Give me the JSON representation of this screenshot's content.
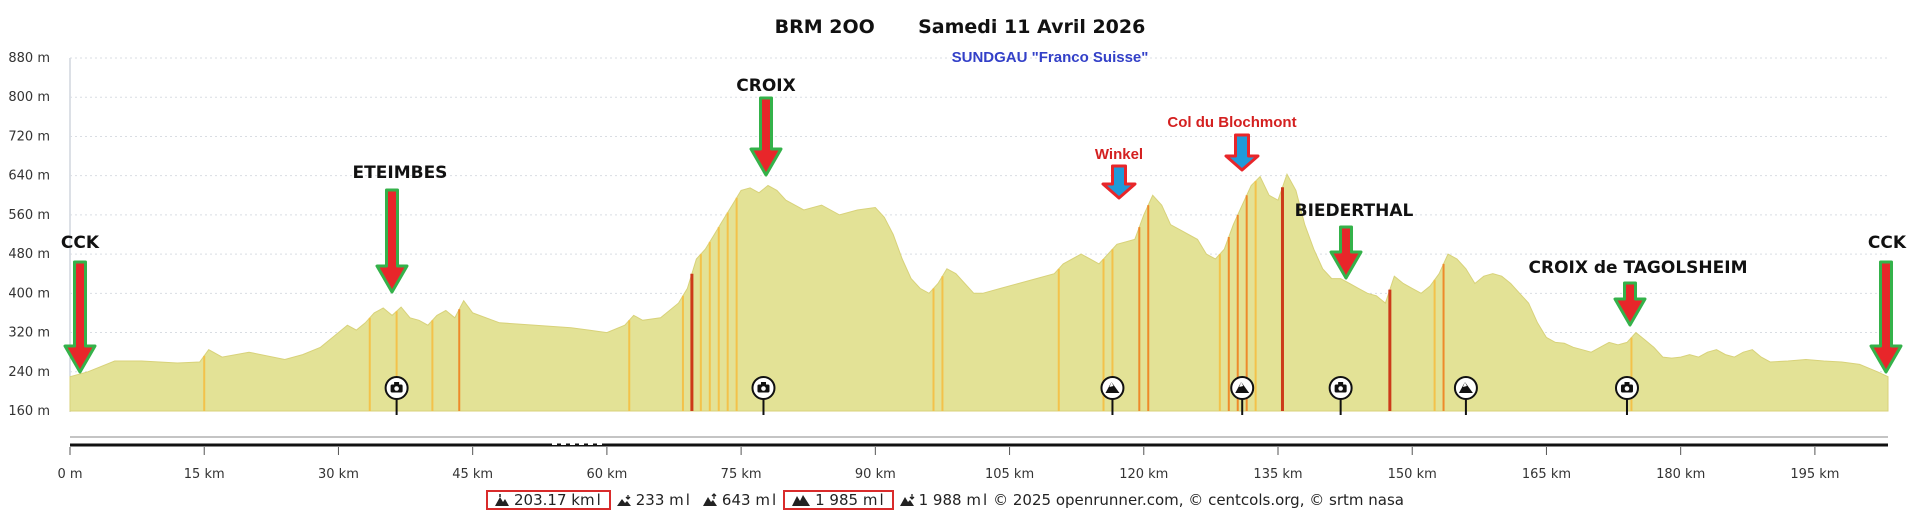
{
  "header": {
    "title": "BRM 2OO",
    "date": "Samedi 11 Avril 2026",
    "subtitle": "SUNDGAU \"Franco Suisse\""
  },
  "footer": {
    "distance": "203.17 km",
    "min_elevation": "233 m",
    "max_elevation": "643 m",
    "climb": "1 985 m",
    "descent": "1 988 m",
    "credits": "© 2025 openrunner.com, © centcols.org, © srtm nasa",
    "separator": "l"
  },
  "colors": {
    "fill": "#e3e296",
    "climb_light": "#f3c24a",
    "climb_mid": "#ee8a2a",
    "climb_steep": "#cc3a1a",
    "arrow_red": "#e8262a",
    "arrow_blue": "#1f9ad9",
    "arrow_border": "#34b24a",
    "label_red": "#d42020",
    "subtitle_blue": "#3340c8"
  },
  "chart_data": {
    "type": "area",
    "xlabel": "",
    "ylabel": "",
    "xlim": [
      0,
      203.17
    ],
    "ylim": [
      160,
      880
    ],
    "x_ticks": [
      0,
      15,
      30,
      45,
      60,
      75,
      90,
      105,
      120,
      135,
      150,
      165,
      180,
      195
    ],
    "x_tick_labels": [
      "0 m",
      "15 km",
      "30 km",
      "45 km",
      "60 km",
      "75 km",
      "90 km",
      "105 km",
      "120 km",
      "135 km",
      "150 km",
      "165 km",
      "180 km",
      "195 km"
    ],
    "y_ticks": [
      160,
      240,
      320,
      400,
      480,
      560,
      640,
      720,
      800,
      880
    ],
    "y_tick_labels": [
      "160 m",
      "240 m",
      "320 m",
      "400 m",
      "480 m",
      "560 m",
      "640 m",
      "720 m",
      "800 m",
      "880 m"
    ],
    "grid": "horizontal dotted",
    "series": [
      {
        "x": [
          0,
          2,
          5,
          8,
          12,
          14.5,
          15.5,
          17,
          20,
          24,
          26,
          28,
          30,
          31,
          32,
          33,
          34,
          35,
          36,
          37,
          38,
          39,
          40,
          41,
          42,
          43,
          44,
          45,
          48,
          52,
          56,
          58,
          60,
          62,
          63,
          64,
          66,
          68,
          69,
          70,
          71,
          72,
          73,
          74,
          75,
          76,
          77,
          78,
          79,
          80,
          82,
          84,
          86,
          88,
          90,
          91,
          92,
          93,
          94,
          95,
          96,
          97,
          98,
          99,
          100,
          101,
          102,
          104,
          106,
          108,
          110,
          111,
          112,
          113,
          114,
          115,
          116,
          117,
          118,
          119,
          120,
          121,
          122,
          123,
          124,
          125,
          126,
          127,
          128,
          129,
          130,
          131,
          132,
          133,
          134,
          135,
          136,
          137,
          138,
          139,
          140,
          141,
          142,
          143,
          144,
          145,
          146,
          147,
          148,
          149,
          150,
          151,
          152,
          153,
          154,
          155,
          156,
          157,
          158,
          159,
          160,
          161,
          162,
          163,
          164,
          165,
          166,
          167,
          168,
          169,
          170,
          171,
          172,
          173,
          174,
          175,
          176,
          177,
          178,
          179,
          180,
          181,
          182,
          183,
          184,
          185,
          186,
          187,
          188,
          189,
          190,
          192,
          194,
          196,
          198,
          200,
          202,
          203.17
        ],
        "y": [
          230,
          240,
          262,
          262,
          258,
          260,
          285,
          270,
          280,
          265,
          275,
          290,
          320,
          335,
          325,
          340,
          360,
          370,
          355,
          372,
          350,
          345,
          335,
          355,
          365,
          350,
          385,
          360,
          340,
          335,
          330,
          325,
          320,
          335,
          355,
          345,
          350,
          380,
          410,
          470,
          490,
          520,
          550,
          580,
          610,
          615,
          605,
          620,
          610,
          590,
          570,
          580,
          560,
          570,
          575,
          555,
          520,
          470,
          430,
          410,
          400,
          420,
          450,
          440,
          420,
          400,
          400,
          410,
          420,
          430,
          440,
          460,
          470,
          480,
          470,
          460,
          480,
          500,
          505,
          510,
          560,
          600,
          580,
          540,
          530,
          520,
          510,
          480,
          470,
          490,
          540,
          580,
          620,
          638,
          600,
          590,
          643,
          610,
          540,
          490,
          450,
          430,
          430,
          420,
          410,
          400,
          395,
          380,
          435,
          420,
          410,
          400,
          415,
          440,
          480,
          470,
          450,
          420,
          435,
          440,
          435,
          420,
          400,
          380,
          340,
          310,
          300,
          298,
          290,
          285,
          280,
          290,
          300,
          295,
          300,
          320,
          305,
          290,
          270,
          268,
          270,
          275,
          270,
          280,
          285,
          275,
          270,
          280,
          285,
          270,
          260,
          262,
          265,
          262,
          260,
          255,
          240,
          230
        ]
      }
    ],
    "annotations": [
      {
        "text": "CCK",
        "x": 1,
        "arrow": "red",
        "color": "black"
      },
      {
        "text": "ETEIMBES",
        "x": 36,
        "arrow": "red",
        "color": "black"
      },
      {
        "text": "CROIX",
        "x": 77.5,
        "arrow": "red",
        "color": "black"
      },
      {
        "text": "Winkel",
        "x": 116.5,
        "arrow": "blue",
        "color": "red"
      },
      {
        "text": "Col du Blochmont",
        "x": 131,
        "arrow": "blue",
        "color": "red"
      },
      {
        "text": "BIEDERTHAL",
        "x": 142,
        "arrow": "red",
        "color": "black"
      },
      {
        "text": "CROIX de TAGOLSHEIM",
        "x": 173.5,
        "arrow": "red",
        "color": "black"
      },
      {
        "text": "CCK",
        "x": 202,
        "arrow": "red",
        "color": "black"
      }
    ],
    "markers": [
      {
        "x": 36.5,
        "icon": "camera-icon"
      },
      {
        "x": 77.5,
        "icon": "camera-icon"
      },
      {
        "x": 116.5,
        "icon": "mountain-pass-icon"
      },
      {
        "x": 131,
        "icon": "mountain-pass-icon"
      },
      {
        "x": 142,
        "icon": "camera-icon"
      },
      {
        "x": 156,
        "icon": "mountain-pass-icon"
      },
      {
        "x": 174,
        "icon": "camera-icon"
      }
    ]
  }
}
